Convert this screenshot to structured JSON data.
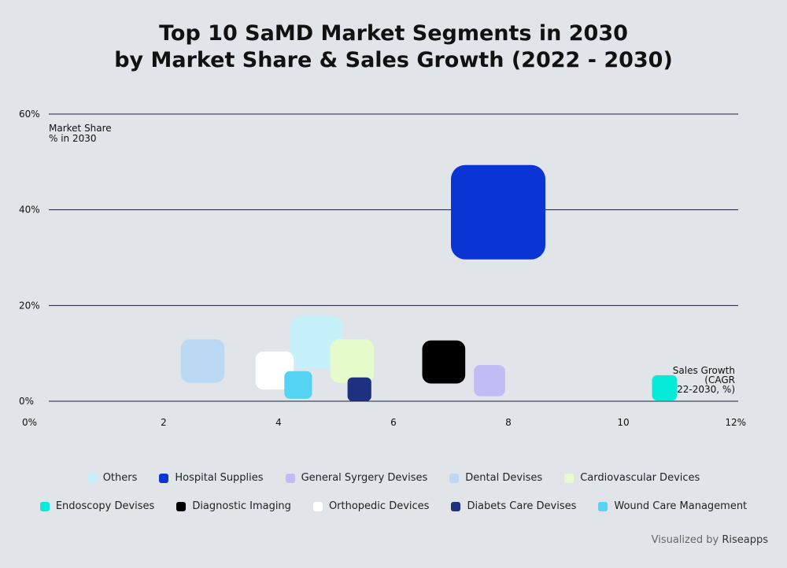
{
  "title_line1": "Top 10 SaMD Market Segments in 2030",
  "title_line2": "by Market Share & Sales Growth (2022 - 2030)",
  "footer": {
    "prefix": "Visualized by",
    "brand": "Riseapps"
  },
  "chart_data": {
    "type": "scatter",
    "title": "Top 10 SaMD Market Segments in 2030 by Market Share & Sales Growth (2022 - 2030)",
    "ylabel_lines": [
      "Market Share",
      "% in 2030"
    ],
    "xlabel_lines": [
      "Sales Growth",
      "(CAGR",
      "2022-2030, %)"
    ],
    "xlim": [
      0,
      12
    ],
    "ylim": [
      0,
      60
    ],
    "x_ticks": [
      {
        "value": 0,
        "label": "0%"
      },
      {
        "value": 2,
        "label": "2"
      },
      {
        "value": 4,
        "label": "4"
      },
      {
        "value": 6,
        "label": "6"
      },
      {
        "value": 8,
        "label": "8"
      },
      {
        "value": 10,
        "label": "10"
      },
      {
        "value": 12,
        "label": "12%"
      }
    ],
    "y_ticks": [
      {
        "value": 0,
        "label": "0%"
      },
      {
        "value": 20,
        "label": "20%"
      },
      {
        "value": 40,
        "label": "40%"
      },
      {
        "value": 60,
        "label": "60%"
      }
    ],
    "grid": true,
    "legend_position": "bottom",
    "series": [
      {
        "name": "Others",
        "x": 4.2,
        "y": 12.3,
        "color": "#c6f1fb"
      },
      {
        "name": "Hospital Supplies",
        "x": 7.0,
        "y": 39.5,
        "color": "#0a35d4"
      },
      {
        "name": "General Syrgery Devises",
        "x": 7.4,
        "y": 4.3,
        "color": "#c0bcf6"
      },
      {
        "name": "Dental Devises",
        "x": 2.3,
        "y": 8.4,
        "color": "#bcd9f4"
      },
      {
        "name": "Cardiovascular Devices",
        "x": 4.9,
        "y": 8.4,
        "color": "#e6fbcb"
      },
      {
        "name": "Endoscopy Devises",
        "x": 10.5,
        "y": 2.8,
        "color": "#05ead9"
      },
      {
        "name": "Diagnostic Imaging",
        "x": 6.5,
        "y": 8.2,
        "color": "#000000"
      },
      {
        "name": "Orthopedic Devices",
        "x": 3.6,
        "y": 6.4,
        "color": "#ffffff"
      },
      {
        "name": "Diabets Care Devises",
        "x": 5.2,
        "y": 2.5,
        "color": "#1d3180"
      },
      {
        "name": "Wound Care Management",
        "x": 4.1,
        "y": 3.4,
        "color": "#55d3f2"
      }
    ],
    "legend_rows": [
      [
        "Others",
        "Hospital Supplies",
        "General Syrgery Devises",
        "Dental Devises",
        "Cardiovascular Devices"
      ],
      [
        "Endoscopy Devises",
        "Diagnostic Imaging",
        "Orthopedic Devices",
        "Diabets Care Devises",
        "Wound Care Management"
      ]
    ]
  }
}
